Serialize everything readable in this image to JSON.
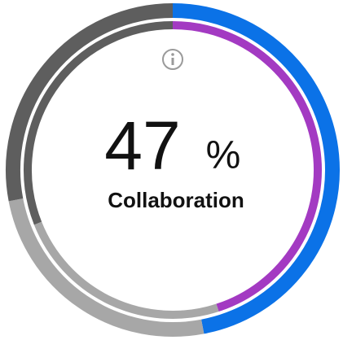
{
  "chart_data": {
    "type": "donut",
    "center_value": 47,
    "center_unit": "%",
    "center_label": "Collaboration",
    "rings": [
      {
        "values": [
          47,
          25,
          28
        ],
        "colors": [
          "#0b72e7",
          "#a7a7a7",
          "#5e5e5e"
        ]
      },
      {
        "values": [
          45,
          24,
          31
        ],
        "colors": [
          "#a33ac2",
          "#a7a7a7",
          "#5e5e5e"
        ]
      }
    ]
  }
}
